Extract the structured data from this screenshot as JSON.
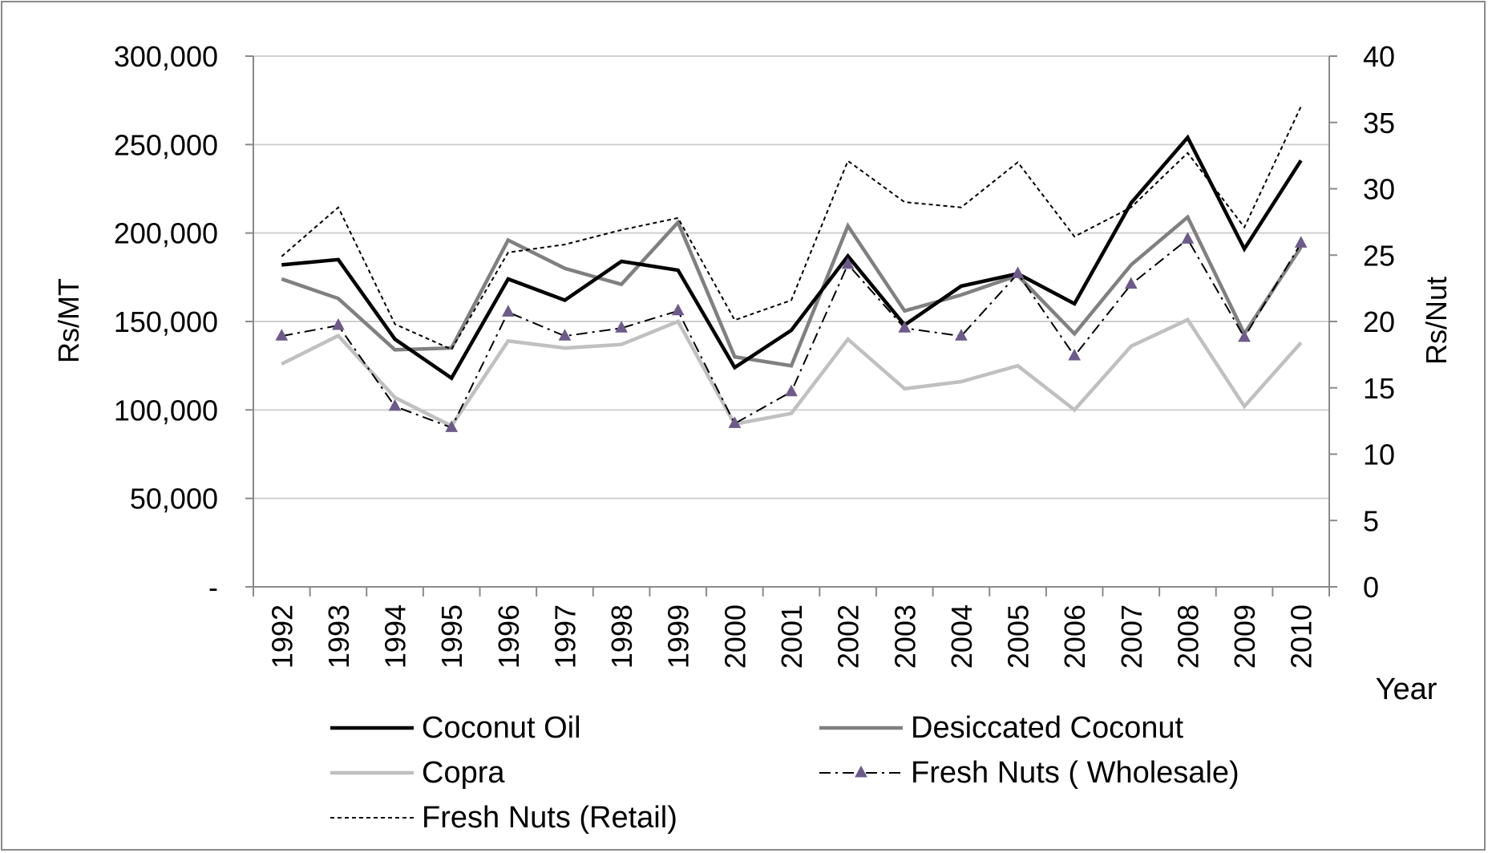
{
  "chart_data": {
    "type": "line",
    "x": [
      "1992",
      "1993",
      "1994",
      "1995",
      "1996",
      "1997",
      "1998",
      "1999",
      "2000",
      "2001",
      "2002",
      "2003",
      "2004",
      "2005",
      "2006",
      "2007",
      "2008",
      "2009",
      "2010"
    ],
    "xlabel": "Year",
    "ylabel_left": "Rs/MT",
    "ylabel_right": "Rs/Nut",
    "ylim_left": [
      0,
      300000
    ],
    "ylim_right": [
      0,
      40
    ],
    "left_ticks": [
      "-",
      "50,000",
      "100,000",
      "150,000",
      "200,000",
      "250,000",
      "300,000"
    ],
    "right_ticks": [
      "0",
      "5",
      "10",
      "15",
      "20",
      "25",
      "30",
      "35",
      "40"
    ],
    "grid": true,
    "legend_position": "bottom",
    "series": [
      {
        "name": "Coconut Oil",
        "axis": "left",
        "color": "#000000",
        "style": "solid-thick",
        "values": [
          182000,
          185000,
          140000,
          118000,
          174000,
          162000,
          184000,
          179000,
          124000,
          145000,
          187000,
          148000,
          170000,
          177000,
          160000,
          217000,
          254000,
          191000,
          241000
        ]
      },
      {
        "name": "Desiccated Coconut",
        "axis": "left",
        "color": "#808080",
        "style": "solid-thick",
        "values": [
          174000,
          163000,
          134000,
          135000,
          196000,
          180000,
          171000,
          206000,
          130000,
          125000,
          204000,
          156000,
          165000,
          176000,
          143000,
          182000,
          209000,
          143000,
          192000
        ]
      },
      {
        "name": "Copra",
        "axis": "left",
        "color": "#c0c0c0",
        "style": "solid-thick",
        "values": [
          126000,
          142000,
          107000,
          91000,
          139000,
          135000,
          137000,
          150000,
          92000,
          98000,
          140000,
          112000,
          116000,
          125000,
          100000,
          136000,
          151000,
          102000,
          138000
        ]
      },
      {
        "name": "Fresh Nuts ( Wholesale)",
        "axis": "right",
        "color": "#000000",
        "marker_color": "#6e5a8a",
        "style": "dash-dot-triangle",
        "values": [
          18.9,
          19.7,
          13.6,
          12.0,
          20.7,
          18.9,
          19.5,
          20.8,
          12.3,
          14.7,
          24.3,
          19.5,
          18.9,
          23.6,
          17.4,
          22.8,
          26.2,
          18.8,
          25.9
        ]
      },
      {
        "name": "Fresh Nuts (Retail)",
        "axis": "right",
        "color": "#000000",
        "style": "dotted",
        "values": [
          24.9,
          28.6,
          19.8,
          17.9,
          25.2,
          25.8,
          26.9,
          27.8,
          20.1,
          21.6,
          32.1,
          29.0,
          28.6,
          32.0,
          26.4,
          28.6,
          32.7,
          27.1,
          36.2
        ]
      }
    ]
  }
}
